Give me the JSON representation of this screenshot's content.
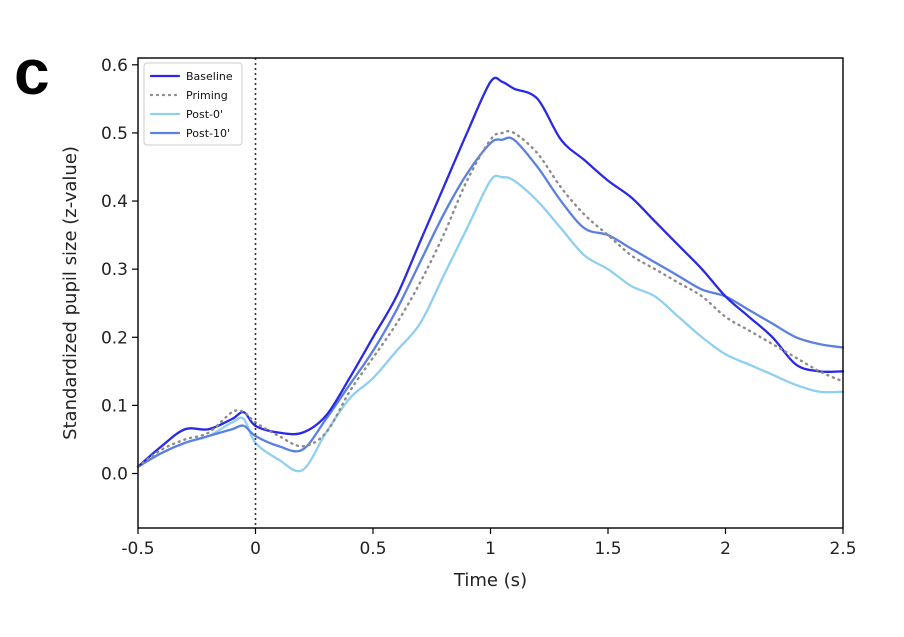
{
  "panel_label": "c",
  "chart_data": {
    "type": "line",
    "title": "",
    "xlabel": "Time (s)",
    "ylabel": "Standardized pupil size (z-value)",
    "xlim": [
      -0.5,
      2.5
    ],
    "ylim": [
      -0.08,
      0.61
    ],
    "x_ticks": [
      -0.5,
      0,
      0.5,
      1,
      1.5,
      2,
      2.5
    ],
    "x_tick_labels": [
      "-0.5",
      "0",
      "0.5",
      "1",
      "1.5",
      "2",
      "2.5"
    ],
    "y_ticks": [
      0.0,
      0.1,
      0.2,
      0.3,
      0.4,
      0.5,
      0.6
    ],
    "y_tick_labels": [
      "0.0",
      "0.1",
      "0.2",
      "0.3",
      "0.4",
      "0.5",
      "0.6"
    ],
    "grid": false,
    "legend_position": "top-left",
    "vline": {
      "x": 0,
      "style": "dotted",
      "color": "#333333"
    },
    "x": [
      -0.5,
      -0.4,
      -0.3,
      -0.2,
      -0.1,
      -0.05,
      0.0,
      0.1,
      0.2,
      0.3,
      0.4,
      0.5,
      0.6,
      0.7,
      0.8,
      0.9,
      1.0,
      1.05,
      1.1,
      1.2,
      1.3,
      1.4,
      1.5,
      1.6,
      1.7,
      1.8,
      1.9,
      2.0,
      2.1,
      2.2,
      2.3,
      2.4,
      2.5
    ],
    "series": [
      {
        "name": "Baseline",
        "color": "#2a2ae6",
        "style": "solid",
        "values": [
          0.01,
          0.04,
          0.065,
          0.065,
          0.08,
          0.09,
          0.07,
          0.06,
          0.06,
          0.085,
          0.14,
          0.2,
          0.26,
          0.34,
          0.42,
          0.5,
          0.575,
          0.575,
          0.565,
          0.55,
          0.49,
          0.46,
          0.43,
          0.405,
          0.37,
          0.335,
          0.3,
          0.26,
          0.23,
          0.2,
          0.16,
          0.15,
          0.15
        ]
      },
      {
        "name": "Priming",
        "color": "#8c8c8c",
        "style": "dotted",
        "values": [
          0.01,
          0.035,
          0.05,
          0.06,
          0.09,
          0.09,
          0.075,
          0.055,
          0.04,
          0.06,
          0.12,
          0.17,
          0.22,
          0.28,
          0.35,
          0.43,
          0.49,
          0.5,
          0.5,
          0.47,
          0.42,
          0.38,
          0.35,
          0.32,
          0.3,
          0.28,
          0.26,
          0.23,
          0.21,
          0.19,
          0.17,
          0.15,
          0.135
        ]
      },
      {
        "name": "Post-0'",
        "color": "#8fcff0",
        "style": "solid",
        "values": [
          0.01,
          0.03,
          0.045,
          0.055,
          0.075,
          0.08,
          0.045,
          0.02,
          0.005,
          0.06,
          0.11,
          0.14,
          0.18,
          0.22,
          0.29,
          0.36,
          0.43,
          0.435,
          0.43,
          0.4,
          0.36,
          0.32,
          0.3,
          0.275,
          0.26,
          0.23,
          0.2,
          0.175,
          0.16,
          0.145,
          0.13,
          0.12,
          0.12
        ]
      },
      {
        "name": "Post-10'",
        "color": "#5b80e0",
        "style": "solid",
        "values": [
          0.01,
          0.03,
          0.045,
          0.055,
          0.065,
          0.07,
          0.055,
          0.04,
          0.035,
          0.08,
          0.13,
          0.18,
          0.24,
          0.31,
          0.38,
          0.44,
          0.485,
          0.49,
          0.49,
          0.45,
          0.4,
          0.36,
          0.35,
          0.33,
          0.31,
          0.29,
          0.27,
          0.26,
          0.24,
          0.22,
          0.2,
          0.19,
          0.185
        ]
      }
    ]
  }
}
